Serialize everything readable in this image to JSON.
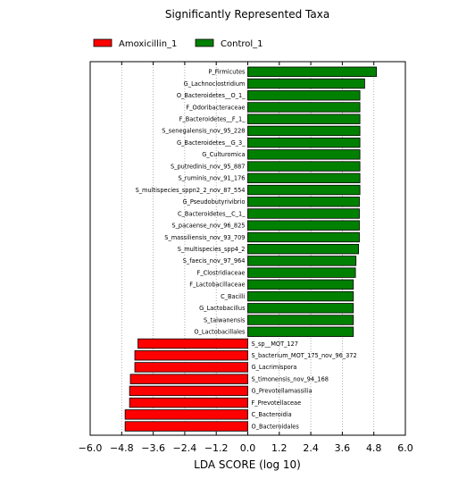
{
  "chart_data": {
    "type": "bar",
    "orientation": "horizontal",
    "title": "Significantly Represented Taxa",
    "xlabel": "LDA SCORE (log 10)",
    "ylabel": "",
    "xlim": [
      -6.0,
      6.0
    ],
    "xticks": [
      -6.0,
      -4.8,
      -3.6,
      -2.4,
      -1.2,
      0.0,
      1.2,
      2.4,
      3.6,
      4.8,
      6.0
    ],
    "xtick_labels": [
      "−6.0",
      "−4.8",
      "−3.6",
      "−2.4",
      "−1.2",
      "0.0",
      "1.2",
      "2.4",
      "3.6",
      "4.8",
      "6.0"
    ],
    "grid": "vertical-dotted",
    "legend_position": "top",
    "series": [
      {
        "name": "Amoxicillin_1",
        "color": "#ff0000"
      },
      {
        "name": "Control_1",
        "color": "#008000"
      }
    ],
    "bars": [
      {
        "label": "P_Firmicutes",
        "value": 4.9,
        "group": "Control_1"
      },
      {
        "label": "G_Lachnoclostridium",
        "value": 4.45,
        "group": "Control_1"
      },
      {
        "label": "O_Bacteroidetes__O_1_",
        "value": 4.27,
        "group": "Control_1"
      },
      {
        "label": "F_Odoribacteraceae",
        "value": 4.27,
        "group": "Control_1"
      },
      {
        "label": "F_Bacteroidetes__F_1_",
        "value": 4.27,
        "group": "Control_1"
      },
      {
        "label": "S_senegalensis_nov_95_228",
        "value": 4.27,
        "group": "Control_1"
      },
      {
        "label": "G_Bacteroidetes__G_3_",
        "value": 4.27,
        "group": "Control_1"
      },
      {
        "label": "G_Culturomica",
        "value": 4.27,
        "group": "Control_1"
      },
      {
        "label": "S_putredinis_nov_95_887",
        "value": 4.27,
        "group": "Control_1"
      },
      {
        "label": "S_ruminis_nov_91_176",
        "value": 4.27,
        "group": "Control_1"
      },
      {
        "label": "S_multispecies_sppn2_2_nov_87_554",
        "value": 4.27,
        "group": "Control_1"
      },
      {
        "label": "G_Pseudobutyrivibrio",
        "value": 4.25,
        "group": "Control_1"
      },
      {
        "label": "C_Bacteroidetes__C_1_",
        "value": 4.25,
        "group": "Control_1"
      },
      {
        "label": "S_pacaense_nov_96_825",
        "value": 4.25,
        "group": "Control_1"
      },
      {
        "label": "S_massiliensis_nov_93_709",
        "value": 4.25,
        "group": "Control_1"
      },
      {
        "label": "S_multispecies_spp4_2",
        "value": 4.22,
        "group": "Control_1"
      },
      {
        "label": "S_faecis_nov_97_964",
        "value": 4.12,
        "group": "Control_1"
      },
      {
        "label": "F_Clostridiaceae",
        "value": 4.1,
        "group": "Control_1"
      },
      {
        "label": "F_Lactobacillaceae",
        "value": 4.02,
        "group": "Control_1"
      },
      {
        "label": "C_Bacilli",
        "value": 4.02,
        "group": "Control_1"
      },
      {
        "label": "G_Lactobacillus",
        "value": 4.02,
        "group": "Control_1"
      },
      {
        "label": "S_taiwanensis",
        "value": 4.02,
        "group": "Control_1"
      },
      {
        "label": "O_Lactobacillales",
        "value": 4.02,
        "group": "Control_1"
      },
      {
        "label": "S_sp__MOT_127",
        "value": -4.18,
        "group": "Amoxicillin_1"
      },
      {
        "label": "S_bacterium_MOT_175_nov_96_372",
        "value": -4.3,
        "group": "Amoxicillin_1"
      },
      {
        "label": "G_Lacrimispora",
        "value": -4.3,
        "group": "Amoxicillin_1"
      },
      {
        "label": "S_timonensis_nov_94_168",
        "value": -4.47,
        "group": "Amoxicillin_1"
      },
      {
        "label": "G_Prevotellamassilia",
        "value": -4.5,
        "group": "Amoxicillin_1"
      },
      {
        "label": "F_Prevotellaceae",
        "value": -4.5,
        "group": "Amoxicillin_1"
      },
      {
        "label": "C_Bacteroidia",
        "value": -4.67,
        "group": "Amoxicillin_1"
      },
      {
        "label": "O_Bacteroidales",
        "value": -4.67,
        "group": "Amoxicillin_1"
      }
    ]
  }
}
